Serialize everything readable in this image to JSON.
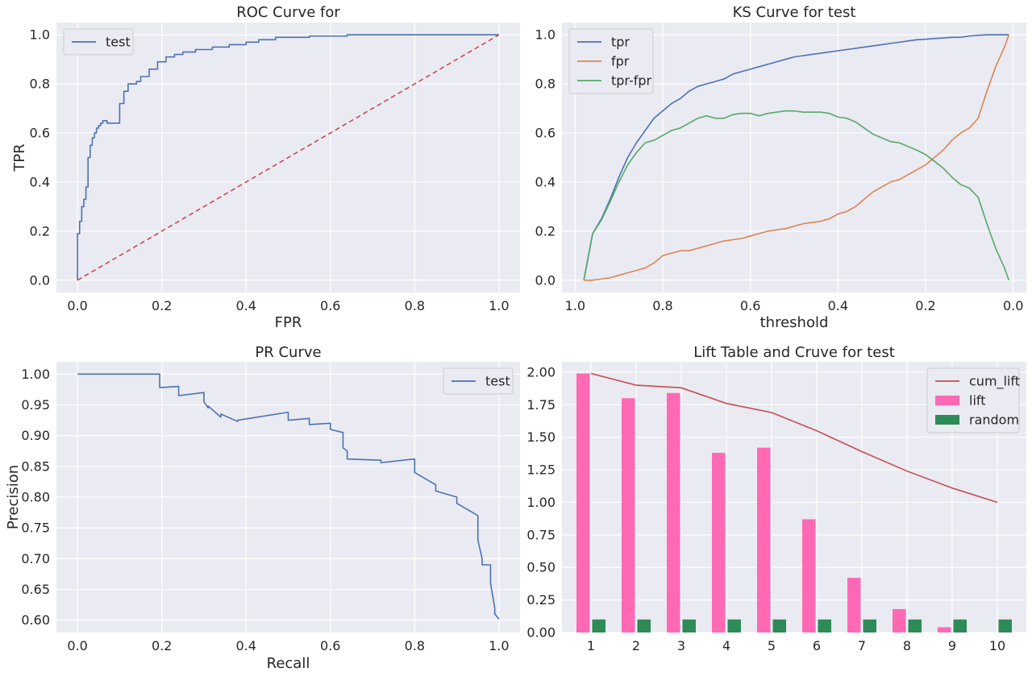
{
  "chart_data": [
    {
      "id": "roc",
      "type": "line",
      "title": "ROC Curve for",
      "xlabel": "FPR",
      "ylabel": "TPR",
      "xlim": [
        -0.05,
        1.05
      ],
      "ylim": [
        -0.05,
        1.05
      ],
      "xticks": [
        0.0,
        0.2,
        0.4,
        0.6,
        0.8,
        1.0
      ],
      "xtick_labels": [
        "0.0",
        "0.2",
        "0.4",
        "0.6",
        "0.8",
        "1.0"
      ],
      "yticks": [
        0.0,
        0.2,
        0.4,
        0.6,
        0.8,
        1.0
      ],
      "ytick_labels": [
        "0.0",
        "0.2",
        "0.4",
        "0.6",
        "0.8",
        "1.0"
      ],
      "legend": {
        "position": "upper-left",
        "entries": [
          {
            "label": "test",
            "color": "#4c72b0"
          }
        ]
      },
      "series": [
        {
          "name": "test",
          "color": "#4c72b0",
          "style": "step",
          "x": [
            0,
            0,
            0.005,
            0.005,
            0.01,
            0.01,
            0.015,
            0.015,
            0.02,
            0.02,
            0.025,
            0.025,
            0.03,
            0.03,
            0.035,
            0.035,
            0.04,
            0.04,
            0.045,
            0.045,
            0.05,
            0.05,
            0.055,
            0.055,
            0.06,
            0.06,
            0.07,
            0.07,
            0.1,
            0.1,
            0.11,
            0.11,
            0.12,
            0.12,
            0.14,
            0.14,
            0.15,
            0.15,
            0.17,
            0.17,
            0.19,
            0.19,
            0.21,
            0.21,
            0.23,
            0.23,
            0.25,
            0.25,
            0.28,
            0.28,
            0.32,
            0.32,
            0.36,
            0.36,
            0.4,
            0.4,
            0.43,
            0.43,
            0.47,
            0.47,
            0.55,
            0.55,
            0.64,
            0.64,
            1.0
          ],
          "y": [
            0,
            0.19,
            0.19,
            0.24,
            0.24,
            0.3,
            0.3,
            0.33,
            0.33,
            0.38,
            0.38,
            0.5,
            0.5,
            0.55,
            0.55,
            0.58,
            0.58,
            0.6,
            0.6,
            0.62,
            0.62,
            0.63,
            0.63,
            0.64,
            0.64,
            0.65,
            0.65,
            0.64,
            0.64,
            0.72,
            0.72,
            0.77,
            0.77,
            0.8,
            0.8,
            0.81,
            0.81,
            0.83,
            0.83,
            0.86,
            0.86,
            0.89,
            0.89,
            0.91,
            0.91,
            0.92,
            0.92,
            0.93,
            0.93,
            0.94,
            0.94,
            0.95,
            0.95,
            0.96,
            0.96,
            0.97,
            0.97,
            0.98,
            0.98,
            0.99,
            0.99,
            0.995,
            0.995,
            1.0,
            1.0
          ]
        },
        {
          "name": "diagonal",
          "color": "#c44e52",
          "style": "dashed",
          "x": [
            0,
            1
          ],
          "y": [
            0,
            1
          ]
        }
      ]
    },
    {
      "id": "ks",
      "type": "line",
      "title": "KS Curve for test",
      "xlabel": "threshold",
      "ylabel": "",
      "xlim": [
        1.03,
        -0.03
      ],
      "ylim": [
        -0.05,
        1.05
      ],
      "xticks": [
        1.0,
        0.8,
        0.6,
        0.4,
        0.2,
        0.0
      ],
      "xtick_labels": [
        "1.0",
        "0.8",
        "0.6",
        "0.4",
        "0.2",
        "0.0"
      ],
      "yticks": [
        0.0,
        0.2,
        0.4,
        0.6,
        0.8,
        1.0
      ],
      "ytick_labels": [
        "0.0",
        "0.2",
        "0.4",
        "0.6",
        "0.8",
        "1.0"
      ],
      "legend": {
        "position": "upper-left",
        "entries": [
          {
            "label": "tpr",
            "color": "#4c72b0"
          },
          {
            "label": "fpr",
            "color": "#dd8452"
          },
          {
            "label": "tpr-fpr",
            "color": "#55a868"
          }
        ]
      },
      "series": [
        {
          "name": "tpr",
          "color": "#4c72b0",
          "x": [
            0.98,
            0.96,
            0.94,
            0.92,
            0.9,
            0.88,
            0.86,
            0.84,
            0.82,
            0.8,
            0.78,
            0.76,
            0.74,
            0.72,
            0.7,
            0.68,
            0.66,
            0.64,
            0.62,
            0.6,
            0.58,
            0.56,
            0.54,
            0.52,
            0.5,
            0.48,
            0.46,
            0.44,
            0.42,
            0.4,
            0.38,
            0.36,
            0.34,
            0.32,
            0.3,
            0.28,
            0.26,
            0.24,
            0.22,
            0.2,
            0.18,
            0.16,
            0.14,
            0.12,
            0.1,
            0.08,
            0.06,
            0.04,
            0.02,
            0.01
          ],
          "y": [
            0,
            0.19,
            0.25,
            0.33,
            0.42,
            0.5,
            0.56,
            0.61,
            0.66,
            0.69,
            0.72,
            0.74,
            0.77,
            0.79,
            0.8,
            0.81,
            0.82,
            0.84,
            0.85,
            0.86,
            0.87,
            0.88,
            0.89,
            0.9,
            0.91,
            0.915,
            0.92,
            0.925,
            0.93,
            0.935,
            0.94,
            0.945,
            0.95,
            0.955,
            0.96,
            0.965,
            0.97,
            0.975,
            0.98,
            0.982,
            0.985,
            0.987,
            0.99,
            0.99,
            0.995,
            0.998,
            1.0,
            1.0,
            1.0,
            1.0
          ]
        },
        {
          "name": "fpr",
          "color": "#dd8452",
          "x": [
            0.98,
            0.96,
            0.94,
            0.92,
            0.9,
            0.88,
            0.86,
            0.84,
            0.82,
            0.8,
            0.78,
            0.76,
            0.74,
            0.72,
            0.7,
            0.68,
            0.66,
            0.64,
            0.62,
            0.6,
            0.58,
            0.56,
            0.54,
            0.52,
            0.5,
            0.48,
            0.46,
            0.44,
            0.42,
            0.4,
            0.38,
            0.36,
            0.34,
            0.32,
            0.3,
            0.28,
            0.26,
            0.24,
            0.22,
            0.2,
            0.18,
            0.16,
            0.14,
            0.12,
            0.1,
            0.08,
            0.06,
            0.04,
            0.02,
            0.01
          ],
          "y": [
            0,
            0,
            0.005,
            0.01,
            0.02,
            0.03,
            0.04,
            0.05,
            0.07,
            0.1,
            0.11,
            0.12,
            0.12,
            0.13,
            0.14,
            0.15,
            0.16,
            0.165,
            0.17,
            0.18,
            0.19,
            0.2,
            0.205,
            0.21,
            0.22,
            0.23,
            0.235,
            0.24,
            0.25,
            0.27,
            0.28,
            0.3,
            0.33,
            0.36,
            0.38,
            0.4,
            0.41,
            0.43,
            0.45,
            0.47,
            0.5,
            0.53,
            0.57,
            0.6,
            0.62,
            0.66,
            0.77,
            0.87,
            0.95,
            1.0
          ]
        },
        {
          "name": "tpr-fpr",
          "color": "#55a868",
          "x": [
            0.98,
            0.96,
            0.94,
            0.92,
            0.9,
            0.88,
            0.86,
            0.84,
            0.82,
            0.8,
            0.78,
            0.76,
            0.74,
            0.72,
            0.7,
            0.68,
            0.66,
            0.64,
            0.62,
            0.6,
            0.58,
            0.56,
            0.54,
            0.52,
            0.5,
            0.48,
            0.46,
            0.44,
            0.42,
            0.4,
            0.38,
            0.36,
            0.34,
            0.32,
            0.3,
            0.28,
            0.26,
            0.24,
            0.22,
            0.2,
            0.18,
            0.16,
            0.14,
            0.12,
            0.1,
            0.08,
            0.06,
            0.04,
            0.02,
            0.01
          ],
          "y": [
            0,
            0.19,
            0.245,
            0.32,
            0.4,
            0.47,
            0.52,
            0.56,
            0.57,
            0.59,
            0.61,
            0.62,
            0.64,
            0.66,
            0.67,
            0.66,
            0.66,
            0.675,
            0.68,
            0.68,
            0.67,
            0.68,
            0.685,
            0.69,
            0.69,
            0.685,
            0.685,
            0.685,
            0.68,
            0.665,
            0.66,
            0.645,
            0.62,
            0.595,
            0.58,
            0.565,
            0.56,
            0.545,
            0.53,
            0.512,
            0.485,
            0.457,
            0.42,
            0.39,
            0.375,
            0.338,
            0.23,
            0.13,
            0.05,
            0.0
          ]
        }
      ]
    },
    {
      "id": "pr",
      "type": "line",
      "title": "PR Curve",
      "xlabel": "Recall",
      "ylabel": "Precision",
      "xlim": [
        -0.05,
        1.05
      ],
      "ylim": [
        0.58,
        1.02
      ],
      "xticks": [
        0.0,
        0.2,
        0.4,
        0.6,
        0.8,
        1.0
      ],
      "xtick_labels": [
        "0.0",
        "0.2",
        "0.4",
        "0.6",
        "0.8",
        "1.0"
      ],
      "yticks": [
        0.6,
        0.65,
        0.7,
        0.75,
        0.8,
        0.85,
        0.9,
        0.95,
        1.0
      ],
      "ytick_labels": [
        "0.60",
        "0.65",
        "0.70",
        "0.75",
        "0.80",
        "0.85",
        "0.90",
        "0.95",
        "1.00"
      ],
      "legend": {
        "position": "upper-right",
        "entries": [
          {
            "label": "test",
            "color": "#4c72b0"
          }
        ]
      },
      "series": [
        {
          "name": "test",
          "color": "#4c72b0",
          "style": "step",
          "x": [
            0,
            0.195,
            0.195,
            0.24,
            0.24,
            0.3,
            0.3,
            0.31,
            0.31,
            0.34,
            0.34,
            0.38,
            0.38,
            0.5,
            0.5,
            0.55,
            0.55,
            0.6,
            0.6,
            0.63,
            0.63,
            0.64,
            0.64,
            0.72,
            0.72,
            0.8,
            0.8,
            0.85,
            0.85,
            0.9,
            0.9,
            0.95,
            0.95,
            0.96,
            0.96,
            0.98,
            0.98,
            0.99,
            0.99,
            1.0
          ],
          "y": [
            1.0,
            1.0,
            0.978,
            0.98,
            0.965,
            0.97,
            0.955,
            0.945,
            0.948,
            0.93,
            0.935,
            0.923,
            0.925,
            0.938,
            0.925,
            0.928,
            0.918,
            0.92,
            0.91,
            0.905,
            0.88,
            0.875,
            0.862,
            0.86,
            0.856,
            0.862,
            0.84,
            0.82,
            0.81,
            0.8,
            0.79,
            0.77,
            0.73,
            0.7,
            0.69,
            0.69,
            0.66,
            0.62,
            0.61,
            0.602
          ]
        }
      ]
    },
    {
      "id": "lift",
      "type": "bar",
      "title": "Lift Table and Cruve for test",
      "xlabel": "",
      "ylabel": "",
      "categories": [
        "1",
        "2",
        "3",
        "4",
        "5",
        "6",
        "7",
        "8",
        "9",
        "10"
      ],
      "ylim": [
        0,
        2.08
      ],
      "yticks": [
        0.0,
        0.25,
        0.5,
        0.75,
        1.0,
        1.25,
        1.5,
        1.75,
        2.0
      ],
      "ytick_labels": [
        "0.00",
        "0.25",
        "0.50",
        "0.75",
        "1.00",
        "1.25",
        "1.50",
        "1.75",
        "2.00"
      ],
      "legend": {
        "position": "upper-right",
        "entries": [
          {
            "label": "cum_lift",
            "color": "#c44e52",
            "kind": "line"
          },
          {
            "label": "lift",
            "color": "#ff69b4",
            "kind": "patch"
          },
          {
            "label": "random",
            "color": "#2e8b57",
            "kind": "patch"
          }
        ]
      },
      "series": [
        {
          "name": "lift",
          "color": "#ff69b4",
          "kind": "bar",
          "values": [
            1.99,
            1.8,
            1.84,
            1.38,
            1.42,
            0.87,
            0.42,
            0.18,
            0.04,
            0.0
          ]
        },
        {
          "name": "random",
          "color": "#2e8b57",
          "kind": "bar",
          "values": [
            0.1,
            0.1,
            0.1,
            0.1,
            0.1,
            0.1,
            0.1,
            0.1,
            0.1,
            0.1
          ]
        },
        {
          "name": "cum_lift",
          "color": "#c44e52",
          "kind": "line",
          "values": [
            1.99,
            1.9,
            1.88,
            1.76,
            1.69,
            1.55,
            1.39,
            1.24,
            1.11,
            1.0
          ]
        }
      ]
    }
  ]
}
